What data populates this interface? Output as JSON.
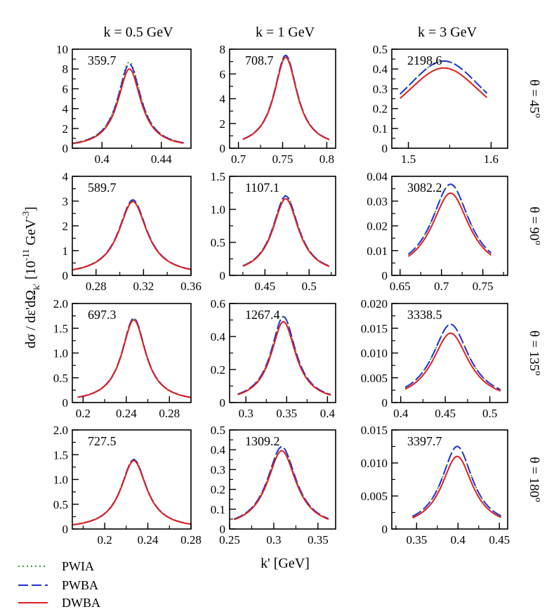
{
  "colors": {
    "pwia": "#2e9e2e",
    "pwba": "#1f33d9",
    "dwba": "#e01e1e",
    "axis": "#000000"
  },
  "chart_data": {
    "type": "line",
    "ylabel_main": "dσ / dε'dΩ",
    "ylabel_sub": "k'",
    "ylabel_units_pre": "[10",
    "ylabel_exp": "-11",
    "ylabel_units_mid": " GeV",
    "ylabel_exp2": "-3",
    "ylabel_units_post": "]",
    "xlabel": "k' [GeV]",
    "column_titles": [
      "k = 0.5 GeV",
      "k = 1 GeV",
      "k = 3 GeV"
    ],
    "row_labels": [
      {
        "base": "θ = 45",
        "sup": "o"
      },
      {
        "base": "θ = 90",
        "sup": "o"
      },
      {
        "base": "θ = 135",
        "sup": "o"
      },
      {
        "base": "θ = 180",
        "sup": "o"
      }
    ],
    "legend": [
      {
        "key": "pwia",
        "label": "PWIA",
        "style": "dotted"
      },
      {
        "key": "pwba",
        "label": "PWBA",
        "style": "dashed"
      },
      {
        "key": "dwba",
        "label": "DWBA",
        "style": "solid"
      }
    ],
    "panels": [
      {
        "row": 0,
        "col": 0,
        "annotation": "359.7",
        "xlim": [
          0.38,
          0.46
        ],
        "ylim": [
          0,
          10
        ],
        "xticks": [
          {
            "v": 0.4,
            "l": "0.4"
          },
          {
            "v": 0.44,
            "l": "0.44"
          }
        ],
        "yticks": [
          {
            "v": 0,
            "l": "0"
          },
          {
            "v": 2,
            "l": "2"
          },
          {
            "v": 4,
            "l": "4"
          },
          {
            "v": 6,
            "l": "6"
          },
          {
            "v": 8,
            "l": "8"
          },
          {
            "v": 10,
            "l": "10"
          }
        ],
        "curve_range": [
          0.38,
          0.455
        ],
        "center": 0.4185,
        "width": 0.0095,
        "peaks": {
          "pwia": 8.7,
          "pwba": 8.5,
          "dwba": 8.0
        }
      },
      {
        "row": 0,
        "col": 1,
        "annotation": "708.7",
        "xlim": [
          0.69,
          0.81
        ],
        "ylim": [
          0,
          8
        ],
        "xticks": [
          {
            "v": 0.7,
            "l": "0.7"
          },
          {
            "v": 0.75,
            "l": "0.75"
          },
          {
            "v": 0.8,
            "l": "0.8"
          }
        ],
        "yticks": [
          {
            "v": 0,
            "l": "0"
          },
          {
            "v": 2,
            "l": "2"
          },
          {
            "v": 4,
            "l": "4"
          },
          {
            "v": 6,
            "l": "6"
          },
          {
            "v": 8,
            "l": "8"
          }
        ],
        "curve_range": [
          0.705,
          0.803
        ],
        "center": 0.7535,
        "width": 0.016,
        "peaks": {
          "pwia": 7.5,
          "pwba": 7.5,
          "dwba": 7.35
        }
      },
      {
        "row": 0,
        "col": 2,
        "annotation": "2198.6",
        "xlim": [
          1.48,
          1.62
        ],
        "ylim": [
          0,
          0.5
        ],
        "xticks": [
          {
            "v": 1.5,
            "l": "1.5"
          },
          {
            "v": 1.6,
            "l": "1.6"
          }
        ],
        "yticks": [
          {
            "v": 0,
            "l": "0"
          },
          {
            "v": 0.1,
            "l": "0.1"
          },
          {
            "v": 0.2,
            "l": "0.2"
          },
          {
            "v": 0.3,
            "l": "0.3"
          },
          {
            "v": 0.4,
            "l": "0.4"
          },
          {
            "v": 0.5,
            "l": "0.5"
          }
        ],
        "curve_range": [
          1.49,
          1.595
        ],
        "center": 1.543,
        "width": 0.068,
        "peaks": {
          "pwia": 0.44,
          "pwba": 0.44,
          "dwba": 0.405
        }
      },
      {
        "row": 1,
        "col": 0,
        "annotation": "589.7",
        "xlim": [
          0.26,
          0.36
        ],
        "ylim": [
          0,
          4
        ],
        "xticks": [
          {
            "v": 0.28,
            "l": "0.28"
          },
          {
            "v": 0.32,
            "l": "0.32"
          },
          {
            "v": 0.36,
            "l": "0.36"
          }
        ],
        "yticks": [
          {
            "v": 0,
            "l": "0"
          },
          {
            "v": 1,
            "l": "1"
          },
          {
            "v": 2,
            "l": "2"
          },
          {
            "v": 3,
            "l": "3"
          },
          {
            "v": 4,
            "l": "4"
          }
        ],
        "curve_range": [
          0.26,
          0.36
        ],
        "center": 0.311,
        "width": 0.0145,
        "peaks": {
          "pwia": 3.0,
          "pwba": 3.05,
          "dwba": 2.98
        }
      },
      {
        "row": 1,
        "col": 1,
        "annotation": "1107.1",
        "xlim": [
          0.41,
          0.53
        ],
        "ylim": [
          0,
          1.5
        ],
        "xticks": [
          {
            "v": 0.45,
            "l": "0.45"
          },
          {
            "v": 0.5,
            "l": "0.5"
          }
        ],
        "yticks": [
          {
            "v": 0,
            "l": "0"
          },
          {
            "v": 0.5,
            "l": "0.5"
          },
          {
            "v": 1,
            "l": "1.0"
          },
          {
            "v": 1.5,
            "l": "1.5"
          }
        ],
        "curve_range": [
          0.425,
          0.523
        ],
        "center": 0.4735,
        "width": 0.018,
        "peaks": {
          "pwia": 1.21,
          "pwba": 1.2,
          "dwba": 1.16
        }
      },
      {
        "row": 1,
        "col": 2,
        "annotation": "3082.2",
        "xlim": [
          0.64,
          0.78
        ],
        "ylim": [
          0,
          0.04
        ],
        "xticks": [
          {
            "v": 0.65,
            "l": "0.65"
          },
          {
            "v": 0.7,
            "l": "0.7"
          },
          {
            "v": 0.75,
            "l": "0.75"
          }
        ],
        "yticks": [
          {
            "v": 0,
            "l": "0"
          },
          {
            "v": 0.01,
            "l": "0.01"
          },
          {
            "v": 0.02,
            "l": "0.02"
          },
          {
            "v": 0.03,
            "l": "0.03"
          },
          {
            "v": 0.04,
            "l": "0.04"
          }
        ],
        "curve_range": [
          0.66,
          0.76
        ],
        "center": 0.711,
        "width": 0.028,
        "peaks": {
          "pwia": 0.0368,
          "pwba": 0.0368,
          "dwba": 0.0332
        }
      },
      {
        "row": 2,
        "col": 0,
        "annotation": "697.3",
        "xlim": [
          0.19,
          0.3
        ],
        "ylim": [
          0,
          2
        ],
        "xticks": [
          {
            "v": 0.2,
            "l": "0.2"
          },
          {
            "v": 0.24,
            "l": "0.24"
          },
          {
            "v": 0.28,
            "l": "0.28"
          }
        ],
        "yticks": [
          {
            "v": 0,
            "l": "0"
          },
          {
            "v": 0.5,
            "l": "0.5"
          },
          {
            "v": 1,
            "l": "1.0"
          },
          {
            "v": 1.5,
            "l": "1.5"
          },
          {
            "v": 2,
            "l": "2.0"
          }
        ],
        "curve_range": [
          0.195,
          0.3
        ],
        "center": 0.247,
        "width": 0.0135,
        "peaks": {
          "pwia": 1.7,
          "pwba": 1.7,
          "dwba": 1.67
        }
      },
      {
        "row": 2,
        "col": 1,
        "annotation": "1267.4",
        "xlim": [
          0.28,
          0.41
        ],
        "ylim": [
          0,
          0.6
        ],
        "xticks": [
          {
            "v": 0.3,
            "l": "0.3"
          },
          {
            "v": 0.35,
            "l": "0.35"
          },
          {
            "v": 0.4,
            "l": "0.4"
          }
        ],
        "yticks": [
          {
            "v": 0,
            "l": "0"
          },
          {
            "v": 0.2,
            "l": "0.2"
          },
          {
            "v": 0.4,
            "l": "0.4"
          },
          {
            "v": 0.6,
            "l": "0.6"
          }
        ],
        "curve_range": [
          0.29,
          0.404
        ],
        "center": 0.346,
        "width": 0.0185,
        "peaks": {
          "pwia": 0.52,
          "pwba": 0.52,
          "dwba": 0.49
        }
      },
      {
        "row": 2,
        "col": 2,
        "annotation": "3338.5",
        "xlim": [
          0.39,
          0.52
        ],
        "ylim": [
          0,
          0.02
        ],
        "xticks": [
          {
            "v": 0.4,
            "l": "0.4"
          },
          {
            "v": 0.45,
            "l": "0.45"
          },
          {
            "v": 0.5,
            "l": "0.5"
          }
        ],
        "yticks": [
          {
            "v": 0,
            "l": "0"
          },
          {
            "v": 0.005,
            "l": "0.005"
          },
          {
            "v": 0.01,
            "l": "0.010"
          },
          {
            "v": 0.015,
            "l": "0.015"
          },
          {
            "v": 0.02,
            "l": "0.020"
          }
        ],
        "curve_range": [
          0.405,
          0.512
        ],
        "center": 0.456,
        "width": 0.025,
        "peaks": {
          "pwia": 0.0158,
          "pwba": 0.0158,
          "dwba": 0.014
        }
      },
      {
        "row": 3,
        "col": 0,
        "annotation": "727.5",
        "xlim": [
          0.17,
          0.28
        ],
        "ylim": [
          0,
          2
        ],
        "xticks": [
          {
            "v": 0.2,
            "l": "0.2"
          },
          {
            "v": 0.24,
            "l": "0.24"
          },
          {
            "v": 0.28,
            "l": "0.28"
          }
        ],
        "yticks": [
          {
            "v": 0,
            "l": "0"
          },
          {
            "v": 0.5,
            "l": "0.5"
          },
          {
            "v": 1,
            "l": "1.0"
          },
          {
            "v": 1.5,
            "l": "1.5"
          },
          {
            "v": 2,
            "l": "2.0"
          }
        ],
        "curve_range": [
          0.17,
          0.28
        ],
        "center": 0.227,
        "width": 0.0145,
        "peaks": {
          "pwia": 1.41,
          "pwba": 1.4,
          "dwba": 1.38
        }
      },
      {
        "row": 3,
        "col": 1,
        "annotation": "1309.2",
        "xlim": [
          0.25,
          0.37
        ],
        "ylim": [
          0,
          0.5
        ],
        "xticks": [
          {
            "v": 0.25,
            "l": "0.25"
          },
          {
            "v": 0.3,
            "l": "0.3"
          },
          {
            "v": 0.35,
            "l": "0.35"
          }
        ],
        "yticks": [
          {
            "v": 0,
            "l": "0"
          },
          {
            "v": 0.1,
            "l": "0.1"
          },
          {
            "v": 0.2,
            "l": "0.2"
          },
          {
            "v": 0.3,
            "l": "0.3"
          },
          {
            "v": 0.4,
            "l": "0.4"
          },
          {
            "v": 0.5,
            "l": "0.5"
          }
        ],
        "curve_range": [
          0.255,
          0.362
        ],
        "center": 0.309,
        "width": 0.02,
        "peaks": {
          "pwia": 0.415,
          "pwba": 0.415,
          "dwba": 0.395
        }
      },
      {
        "row": 3,
        "col": 2,
        "annotation": "3397.7",
        "xlim": [
          0.32,
          0.46
        ],
        "ylim": [
          0,
          0.015
        ],
        "xticks": [
          {
            "v": 0.35,
            "l": "0.35"
          },
          {
            "v": 0.4,
            "l": "0.4"
          },
          {
            "v": 0.45,
            "l": "0.45"
          }
        ],
        "yticks": [
          {
            "v": 0,
            "l": "0"
          },
          {
            "v": 0.005,
            "l": "0.005"
          },
          {
            "v": 0.01,
            "l": "0.010"
          },
          {
            "v": 0.015,
            "l": "0.015"
          }
        ],
        "curve_range": [
          0.345,
          0.452
        ],
        "center": 0.399,
        "width": 0.023,
        "peaks": {
          "pwia": 0.0125,
          "pwba": 0.0125,
          "dwba": 0.011
        }
      }
    ]
  }
}
